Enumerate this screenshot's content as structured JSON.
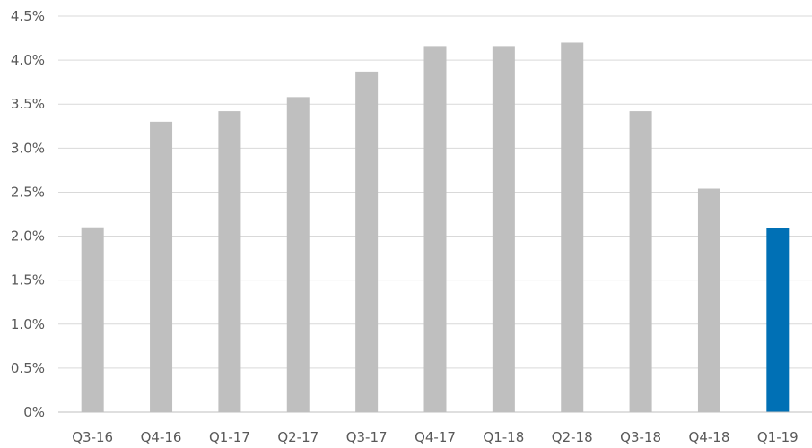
{
  "chart_data": {
    "type": "bar",
    "title": "",
    "xlabel": "",
    "ylabel": "",
    "categories": [
      "Q3-16",
      "Q4-16",
      "Q1-17",
      "Q2-17",
      "Q3-17",
      "Q4-17",
      "Q1-18",
      "Q2-18",
      "Q3-18",
      "Q4-18",
      "Q1-19"
    ],
    "values": [
      2.1,
      3.3,
      3.42,
      3.58,
      3.87,
      4.16,
      4.16,
      4.2,
      3.42,
      2.54,
      2.09
    ],
    "ylim": [
      0,
      4.5
    ],
    "yticks": [
      0,
      0.5,
      1.0,
      1.5,
      2.0,
      2.5,
      3.0,
      3.5,
      4.0,
      4.5
    ],
    "ytick_labels": [
      "0%",
      "0.5%",
      "1.0%",
      "1.5%",
      "2.0%",
      "2.5%",
      "3.0%",
      "3.5%",
      "4.0%",
      "4.5%"
    ],
    "grid": true,
    "legend": "none",
    "colors": {
      "default_bar": "#bfbfbf",
      "highlight_bar": "#0070b5"
    },
    "highlight_index": 10
  }
}
